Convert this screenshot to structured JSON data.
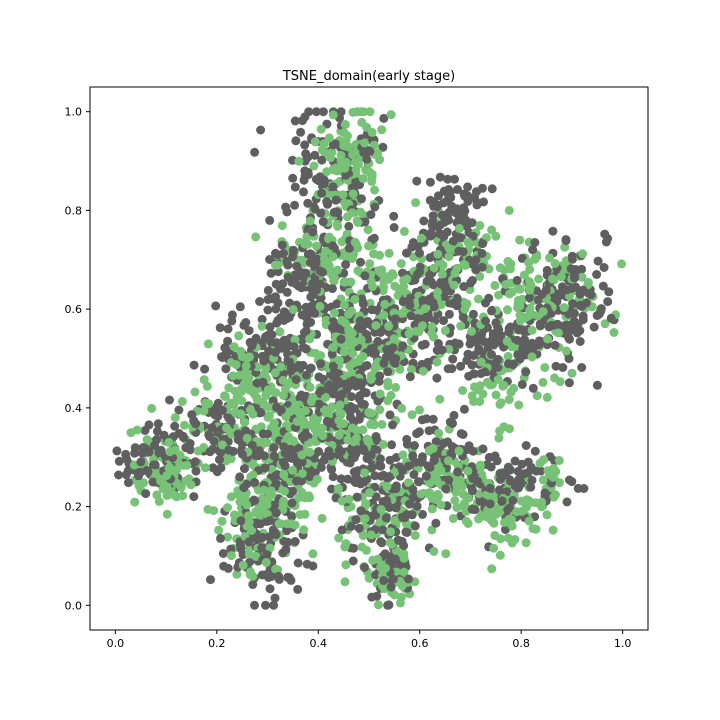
{
  "chart_data": {
    "type": "scatter",
    "title": "TSNE_domain(early stage)",
    "xlabel": "",
    "ylabel": "",
    "xlim": [
      -0.05,
      1.05
    ],
    "ylim": [
      -0.05,
      1.05
    ],
    "xticks": [
      "0.0",
      "0.2",
      "0.4",
      "0.6",
      "0.8",
      "1.0"
    ],
    "yticks": [
      "0.0",
      "0.2",
      "0.4",
      "0.6",
      "0.8",
      "1.0"
    ],
    "grid": false,
    "legend": "none",
    "series": [
      {
        "color": "#5f5f5f",
        "clusters": [
          {
            "x": 0.09,
            "y": 0.3,
            "sx": 0.04,
            "sy": 0.04,
            "n": 80
          },
          {
            "x": 0.22,
            "y": 0.36,
            "sx": 0.04,
            "sy": 0.04,
            "n": 70
          },
          {
            "x": 0.3,
            "y": 0.52,
            "sx": 0.05,
            "sy": 0.05,
            "n": 110
          },
          {
            "x": 0.43,
            "y": 0.86,
            "sx": 0.05,
            "sy": 0.07,
            "n": 130
          },
          {
            "x": 0.37,
            "y": 0.66,
            "sx": 0.04,
            "sy": 0.05,
            "n": 100
          },
          {
            "x": 0.5,
            "y": 0.55,
            "sx": 0.06,
            "sy": 0.06,
            "n": 160
          },
          {
            "x": 0.43,
            "y": 0.42,
            "sx": 0.05,
            "sy": 0.04,
            "n": 110
          },
          {
            "x": 0.66,
            "y": 0.78,
            "sx": 0.04,
            "sy": 0.05,
            "n": 110
          },
          {
            "x": 0.62,
            "y": 0.64,
            "sx": 0.04,
            "sy": 0.04,
            "n": 80
          },
          {
            "x": 0.75,
            "y": 0.53,
            "sx": 0.05,
            "sy": 0.04,
            "n": 110
          },
          {
            "x": 0.88,
            "y": 0.6,
            "sx": 0.05,
            "sy": 0.06,
            "n": 130
          },
          {
            "x": 0.78,
            "y": 0.24,
            "sx": 0.05,
            "sy": 0.04,
            "n": 100
          },
          {
            "x": 0.63,
            "y": 0.3,
            "sx": 0.04,
            "sy": 0.04,
            "n": 80
          },
          {
            "x": 0.29,
            "y": 0.12,
            "sx": 0.04,
            "sy": 0.06,
            "n": 100
          },
          {
            "x": 0.33,
            "y": 0.28,
            "sx": 0.04,
            "sy": 0.04,
            "n": 80
          },
          {
            "x": 0.53,
            "y": 0.2,
            "sx": 0.05,
            "sy": 0.05,
            "n": 100
          },
          {
            "x": 0.55,
            "y": 0.07,
            "sx": 0.02,
            "sy": 0.03,
            "n": 40
          },
          {
            "x": 0.47,
            "y": 0.3,
            "sx": 0.04,
            "sy": 0.04,
            "n": 70
          }
        ]
      },
      {
        "color": "#77c277",
        "clusters": [
          {
            "x": 0.1,
            "y": 0.27,
            "sx": 0.04,
            "sy": 0.04,
            "n": 70
          },
          {
            "x": 0.2,
            "y": 0.38,
            "sx": 0.04,
            "sy": 0.04,
            "n": 50
          },
          {
            "x": 0.27,
            "y": 0.45,
            "sx": 0.04,
            "sy": 0.05,
            "n": 70
          },
          {
            "x": 0.46,
            "y": 0.88,
            "sx": 0.04,
            "sy": 0.06,
            "n": 110
          },
          {
            "x": 0.42,
            "y": 0.7,
            "sx": 0.05,
            "sy": 0.05,
            "n": 100
          },
          {
            "x": 0.48,
            "y": 0.52,
            "sx": 0.06,
            "sy": 0.06,
            "n": 130
          },
          {
            "x": 0.36,
            "y": 0.38,
            "sx": 0.04,
            "sy": 0.04,
            "n": 80
          },
          {
            "x": 0.57,
            "y": 0.6,
            "sx": 0.04,
            "sy": 0.05,
            "n": 70
          },
          {
            "x": 0.67,
            "y": 0.7,
            "sx": 0.04,
            "sy": 0.05,
            "n": 60
          },
          {
            "x": 0.83,
            "y": 0.62,
            "sx": 0.06,
            "sy": 0.06,
            "n": 130
          },
          {
            "x": 0.75,
            "y": 0.45,
            "sx": 0.04,
            "sy": 0.04,
            "n": 50
          },
          {
            "x": 0.76,
            "y": 0.2,
            "sx": 0.05,
            "sy": 0.04,
            "n": 100
          },
          {
            "x": 0.66,
            "y": 0.26,
            "sx": 0.04,
            "sy": 0.04,
            "n": 70
          },
          {
            "x": 0.28,
            "y": 0.18,
            "sx": 0.04,
            "sy": 0.06,
            "n": 110
          },
          {
            "x": 0.34,
            "y": 0.28,
            "sx": 0.04,
            "sy": 0.04,
            "n": 60
          },
          {
            "x": 0.52,
            "y": 0.18,
            "sx": 0.05,
            "sy": 0.05,
            "n": 90
          },
          {
            "x": 0.55,
            "y": 0.05,
            "sx": 0.02,
            "sy": 0.02,
            "n": 35
          },
          {
            "x": 0.45,
            "y": 0.36,
            "sx": 0.04,
            "sy": 0.04,
            "n": 60
          },
          {
            "x": 0.86,
            "y": 0.26,
            "sx": 0.01,
            "sy": 0.02,
            "n": 15
          }
        ]
      }
    ]
  }
}
